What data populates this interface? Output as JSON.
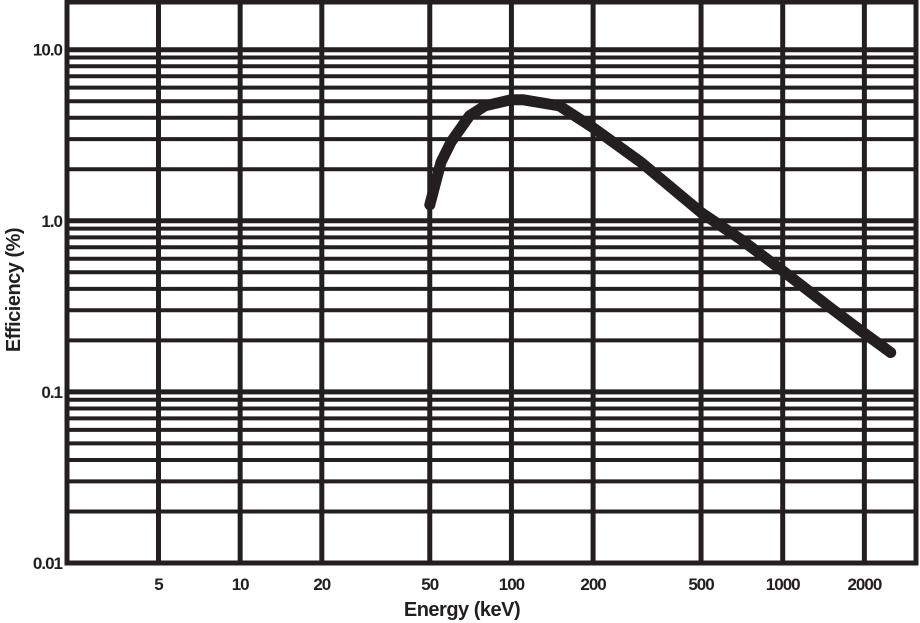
{
  "chart_data": {
    "type": "line",
    "title": "",
    "xlabel": "Energy (keV)",
    "ylabel": "Efficiency (%)",
    "xscale": "log",
    "yscale": "log",
    "xlim": [
      2.3,
      3100
    ],
    "ylim": [
      0.01,
      19
    ],
    "grid": true,
    "legend": null,
    "x_ticks": [
      5,
      10,
      20,
      50,
      100,
      200,
      500,
      1000,
      2000
    ],
    "x_tick_labels": [
      "5",
      "10",
      "20",
      "50",
      "100",
      "200",
      "500",
      "1000",
      "2000"
    ],
    "y_ticks": [
      0.01,
      0.1,
      1.0,
      10.0
    ],
    "y_tick_labels": [
      "0.01",
      "0.1",
      "1.0",
      "10.0"
    ],
    "series": [
      {
        "name": "Efficiency",
        "x": [
          50,
          55,
          60,
          70,
          80,
          100,
          110,
          150,
          200,
          300,
          500,
          700,
          1000,
          1500,
          2000,
          2500
        ],
        "y": [
          1.24,
          2.2,
          2.9,
          4.1,
          4.7,
          5.1,
          5.1,
          4.7,
          3.5,
          2.2,
          1.12,
          0.78,
          0.51,
          0.31,
          0.22,
          0.17
        ]
      }
    ]
  },
  "colors": {
    "background": "#ffffff",
    "ink": "#231f20"
  }
}
